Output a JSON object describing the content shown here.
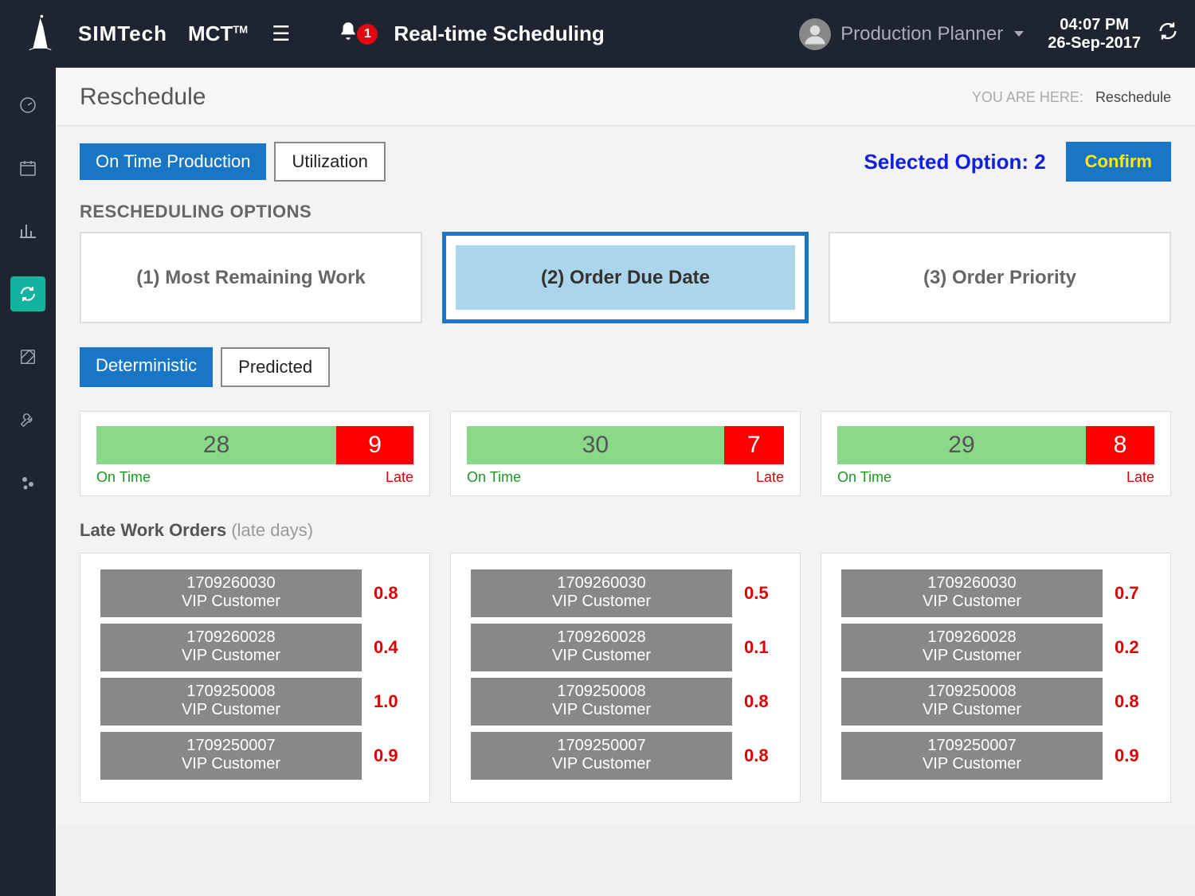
{
  "header": {
    "brand": "SIMTech",
    "product": "MCT",
    "product_sup": "TM",
    "notification_count": "1",
    "module_title": "Real-time Scheduling",
    "user_role": "Production Planner",
    "time": "04:07 PM",
    "date": "26-Sep-2017"
  },
  "page": {
    "title": "Reschedule",
    "breadcrumb_label": "YOU ARE HERE:",
    "breadcrumb_page": "Reschedule"
  },
  "tabs": {
    "on_time": "On Time Production",
    "utilization": "Utilization",
    "selected_option_label": "Selected Option: 2",
    "confirm": "Confirm"
  },
  "section_label": "RESCHEDULING OPTIONS",
  "options": [
    {
      "label": "(1) Most Remaining Work",
      "selected": false
    },
    {
      "label": "(2) Order Due Date",
      "selected": true
    },
    {
      "label": "(3) Order Priority",
      "selected": false
    }
  ],
  "subtabs": {
    "det": "Deterministic",
    "pred": "Predicted"
  },
  "stats": [
    {
      "ontime": 28,
      "late": 9
    },
    {
      "ontime": 30,
      "late": 7
    },
    {
      "ontime": 29,
      "late": 8
    }
  ],
  "stat_labels": {
    "ontime": "On Time",
    "late": "Late"
  },
  "late_title": "Late Work Orders",
  "late_sub": "(late days)",
  "orders": [
    [
      {
        "id": "1709260030",
        "cust": "VIP Customer",
        "days": "0.8"
      },
      {
        "id": "1709260028",
        "cust": "VIP Customer",
        "days": "0.4"
      },
      {
        "id": "1709250008",
        "cust": "VIP Customer",
        "days": "1.0"
      },
      {
        "id": "1709250007",
        "cust": "VIP Customer",
        "days": "0.9"
      }
    ],
    [
      {
        "id": "1709260030",
        "cust": "VIP Customer",
        "days": "0.5"
      },
      {
        "id": "1709260028",
        "cust": "VIP Customer",
        "days": "0.1"
      },
      {
        "id": "1709250008",
        "cust": "VIP Customer",
        "days": "0.8"
      },
      {
        "id": "1709250007",
        "cust": "VIP Customer",
        "days": "0.8"
      }
    ],
    [
      {
        "id": "1709260030",
        "cust": "VIP Customer",
        "days": "0.7"
      },
      {
        "id": "1709260028",
        "cust": "VIP Customer",
        "days": "0.2"
      },
      {
        "id": "1709250008",
        "cust": "VIP Customer",
        "days": "0.8"
      },
      {
        "id": "1709250007",
        "cust": "VIP Customer",
        "days": "0.9"
      }
    ]
  ],
  "colors": {
    "header_bg": "#1e2530",
    "accent_blue": "#1976c5",
    "accent_teal": "#14b3a0",
    "selected_highlight": "#aad5eb",
    "ontime_green": "#89d989",
    "late_red": "#f00000",
    "order_grey": "#888888",
    "confirm_text": "#ffea00",
    "selected_option_text": "#1020e0"
  }
}
